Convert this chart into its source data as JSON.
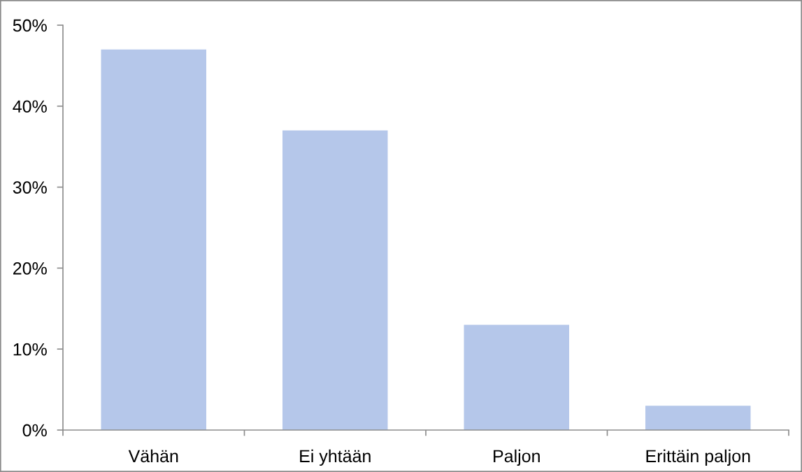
{
  "chart_data": {
    "type": "bar",
    "categories": [
      "Vähän",
      "Ei yhtään",
      "Paljon",
      "Erittäin paljon"
    ],
    "values": [
      47,
      37,
      13,
      3
    ],
    "color": "#b5c7ea",
    "ylim": [
      0,
      50
    ],
    "yticks": [
      {
        "value": 0,
        "label": "0%"
      },
      {
        "value": 10,
        "label": "10%"
      },
      {
        "value": 20,
        "label": "20%"
      },
      {
        "value": 30,
        "label": "30%"
      },
      {
        "value": 40,
        "label": "40%"
      },
      {
        "value": 50,
        "label": "50%"
      }
    ],
    "grid": false,
    "legend": false
  }
}
